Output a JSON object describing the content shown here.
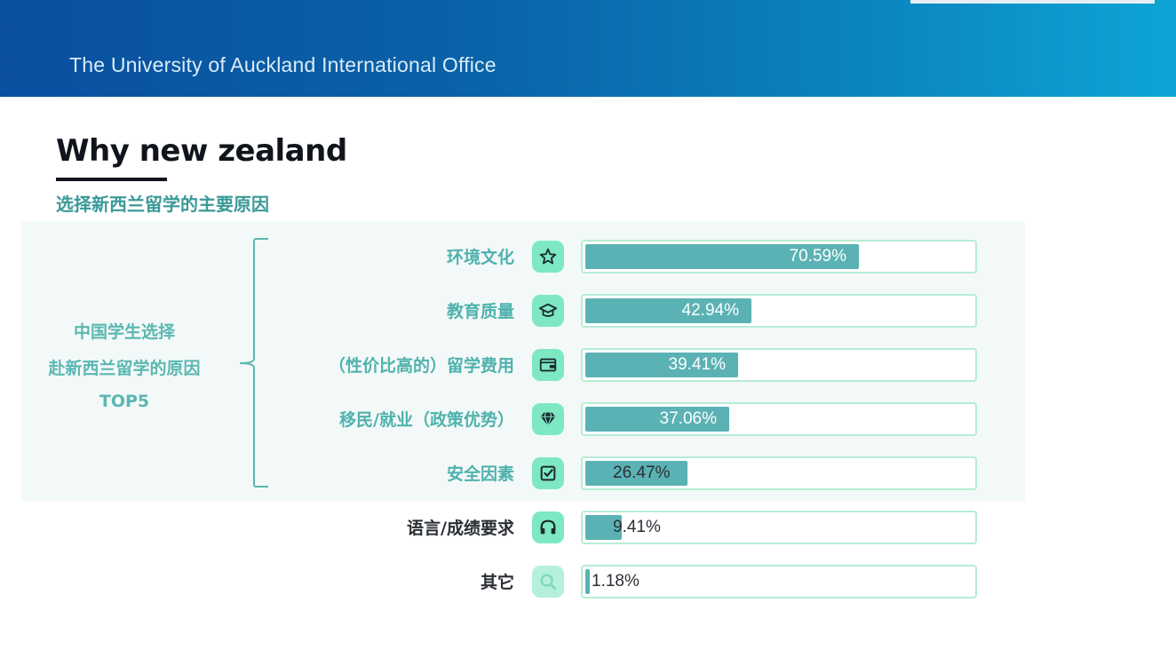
{
  "header": {
    "title": "The University of Auckland International Office"
  },
  "page": {
    "title": "Why new zealand",
    "subtitle": "选择新西兰留学的主要原因"
  },
  "side_label": {
    "line1": "中国学生选择",
    "line2": "赴新西兰留学的原因",
    "line3": "TOP5"
  },
  "chart_data": {
    "type": "bar",
    "orientation": "horizontal",
    "xlim": [
      0,
      100
    ],
    "categories": [
      "环境文化",
      "教育质量",
      "（性价比高的）留学费用",
      "移民/就业（政策优势）",
      "安全因素",
      "语言/成绩要求",
      "其它"
    ],
    "values": [
      70.59,
      42.94,
      39.41,
      37.06,
      26.47,
      9.41,
      1.18
    ],
    "value_labels": [
      "70.59%",
      "42.94%",
      "39.41%",
      "37.06%",
      "26.47%",
      "9.41%",
      "1.18%"
    ],
    "icons": [
      "star-icon",
      "graduation-cap-icon",
      "wallet-icon",
      "diamond-icon",
      "checkbox-icon",
      "headphones-icon",
      "magnifier-icon"
    ],
    "highlighted_top": 5,
    "colors": {
      "bar": "#5bb2b4",
      "track_border": "#b8ecd5",
      "icon_bg": "#7ee8c3",
      "label_top5": "#4fb2ad",
      "label_other": "#2b2f35"
    }
  }
}
